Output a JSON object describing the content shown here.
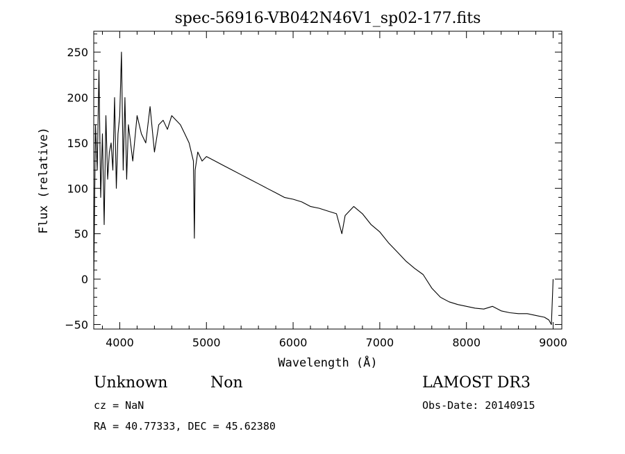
{
  "chart_data": {
    "type": "line",
    "title": "spec-56916-VB042N46V1_sp02-177.fits",
    "xlabel": "Wavelength (Å)",
    "ylabel": "Flux (relative)",
    "xlim": [
      3700,
      9100
    ],
    "ylim": [
      -55,
      273
    ],
    "xticks": [
      4000,
      5000,
      6000,
      7000,
      8000,
      9000
    ],
    "xtick_labels": [
      "4000",
      "5000",
      "6000",
      "7000",
      "8000",
      "9000"
    ],
    "yticks": [
      -50,
      0,
      50,
      100,
      150,
      200,
      250
    ],
    "ytick_labels": [
      "−50",
      "0",
      "50",
      "100",
      "150",
      "200",
      "250"
    ],
    "grid": false,
    "series": [
      {
        "name": "flux",
        "color": "#000000",
        "x": [
          3700,
          3720,
          3740,
          3760,
          3780,
          3800,
          3820,
          3840,
          3860,
          3880,
          3900,
          3920,
          3940,
          3960,
          3980,
          4000,
          4020,
          4040,
          4060,
          4080,
          4100,
          4150,
          4200,
          4250,
          4300,
          4350,
          4400,
          4450,
          4500,
          4550,
          4600,
          4650,
          4700,
          4750,
          4800,
          4850,
          4861,
          4870,
          4900,
          4950,
          5000,
          5100,
          5200,
          5300,
          5400,
          5500,
          5600,
          5700,
          5800,
          5900,
          6000,
          6100,
          6200,
          6300,
          6400,
          6500,
          6563,
          6600,
          6700,
          6800,
          6900,
          7000,
          7100,
          7200,
          7300,
          7400,
          7500,
          7600,
          7700,
          7800,
          7900,
          8000,
          8100,
          8200,
          8300,
          8400,
          8500,
          8600,
          8700,
          8800,
          8900,
          8950,
          8980,
          9000
        ],
        "y": [
          0,
          170,
          120,
          230,
          90,
          160,
          60,
          180,
          110,
          140,
          150,
          120,
          200,
          100,
          160,
          180,
          250,
          120,
          200,
          110,
          170,
          130,
          180,
          160,
          150,
          190,
          140,
          170,
          175,
          165,
          180,
          175,
          170,
          160,
          150,
          130,
          45,
          120,
          140,
          130,
          135,
          130,
          125,
          120,
          115,
          110,
          105,
          100,
          95,
          90,
          88,
          85,
          80,
          78,
          75,
          72,
          50,
          70,
          80,
          72,
          60,
          52,
          40,
          30,
          20,
          12,
          5,
          -10,
          -20,
          -25,
          -28,
          -30,
          -32,
          -33,
          -30,
          -35,
          -37,
          -38,
          -38,
          -40,
          -42,
          -45,
          -50,
          0
        ]
      }
    ]
  },
  "annotations": {
    "object_class": "Unknown",
    "subclass": "Non",
    "redshift": "cz = NaN",
    "coordinates": "RA =  40.77333, DEC =  45.62380",
    "survey": "LAMOST DR3",
    "obs_date": "Obs-Date: 20140915"
  }
}
